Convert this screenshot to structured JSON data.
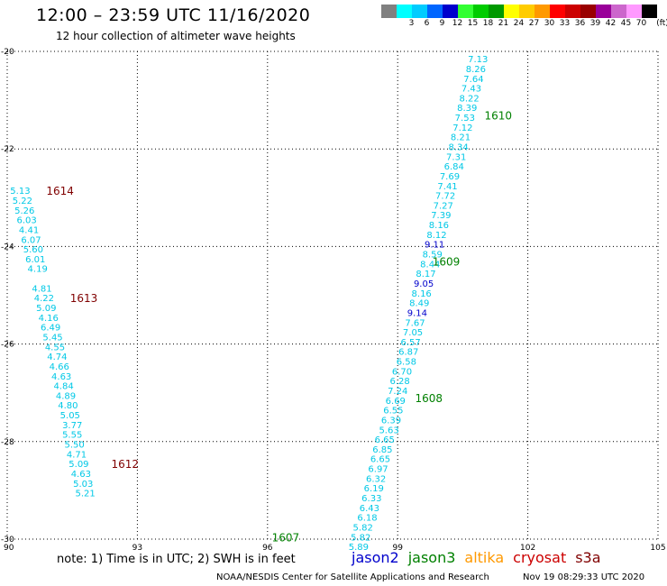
{
  "header": {
    "title": "12:00 – 23:59 UTC 11/16/2020",
    "subtitle": "12 hour collection of altimeter wave heights"
  },
  "legend": {
    "unit": "(ft)",
    "swatches": [
      {
        "label": "",
        "color": "#808080"
      },
      {
        "label": "3",
        "color": "#00ffff"
      },
      {
        "label": "6",
        "color": "#00ccff"
      },
      {
        "label": "9",
        "color": "#0066ff"
      },
      {
        "label": "12",
        "color": "#0000cc"
      },
      {
        "label": "15",
        "color": "#33ff33"
      },
      {
        "label": "18",
        "color": "#00cc00"
      },
      {
        "label": "21",
        "color": "#009900"
      },
      {
        "label": "24",
        "color": "#ffff00"
      },
      {
        "label": "27",
        "color": "#ffcc00"
      },
      {
        "label": "30",
        "color": "#ff9900"
      },
      {
        "label": "33",
        "color": "#ff0000"
      },
      {
        "label": "36",
        "color": "#cc0000"
      },
      {
        "label": "39",
        "color": "#990000"
      },
      {
        "label": "42",
        "color": "#990099"
      },
      {
        "label": "45",
        "color": "#cc66cc"
      },
      {
        "label": "70",
        "color": "#ff99ff"
      },
      {
        "label": "",
        "color": "#000000"
      }
    ]
  },
  "footer": {
    "note": "note: 1) Time is in UTC; 2) SWH is in feet",
    "satellites": [
      {
        "name": "jason2",
        "color": "#0000cc"
      },
      {
        "name": "jason3",
        "color": "#008000"
      },
      {
        "name": "altika",
        "color": "#ff9900"
      },
      {
        "name": "cryosat",
        "color": "#cc0000"
      },
      {
        "name": "s3a",
        "color": "#800000"
      }
    ],
    "credit": "NOAA/NESDIS Center for Satellite Applications and Research",
    "timestamp": "Nov 19 08:29:33 UTC 2020"
  },
  "chart_data": {
    "type": "scatter",
    "xlim": [
      90,
      105
    ],
    "ylim": [
      -30,
      -20
    ],
    "x_ticks": [
      "90",
      "93",
      "96",
      "99",
      "102",
      "105"
    ],
    "y_ticks": [
      "-20",
      "-22",
      "-24",
      "-26",
      "-28",
      "-30"
    ],
    "grid": true,
    "colors": {
      "cyan": "#00c8e6",
      "blue": "#0000cc",
      "green": "#008000",
      "maroon": "#800000"
    },
    "track_labels": [
      {
        "text": "1610",
        "x": 101.0,
        "y": -21.3,
        "color": "green"
      },
      {
        "text": "1609",
        "x": 99.8,
        "y": -24.3,
        "color": "green"
      },
      {
        "text": "1608",
        "x": 99.4,
        "y": -27.1,
        "color": "green"
      },
      {
        "text": "1607",
        "x": 96.1,
        "y": -29.95,
        "color": "green"
      },
      {
        "text": "1614",
        "x": 90.9,
        "y": -22.85,
        "color": "maroon"
      },
      {
        "text": "1613",
        "x": 91.45,
        "y": -25.05,
        "color": "maroon"
      },
      {
        "text": "1612",
        "x": 92.4,
        "y": -28.45,
        "color": "maroon"
      }
    ],
    "points": [
      {
        "x": 100.85,
        "y": -20.15,
        "v": "7.13",
        "c": "cyan"
      },
      {
        "x": 100.8,
        "y": -20.35,
        "v": "8.26",
        "c": "cyan"
      },
      {
        "x": 100.75,
        "y": -20.55,
        "v": "7.64",
        "c": "cyan"
      },
      {
        "x": 100.7,
        "y": -20.75,
        "v": "7.43",
        "c": "cyan"
      },
      {
        "x": 100.65,
        "y": -20.95,
        "v": "8.22",
        "c": "cyan"
      },
      {
        "x": 100.6,
        "y": -21.15,
        "v": "8.39",
        "c": "cyan"
      },
      {
        "x": 100.55,
        "y": -21.35,
        "v": "7.53",
        "c": "cyan"
      },
      {
        "x": 100.5,
        "y": -21.55,
        "v": "7.12",
        "c": "cyan"
      },
      {
        "x": 100.45,
        "y": -21.75,
        "v": "8.21",
        "c": "cyan"
      },
      {
        "x": 100.4,
        "y": -21.95,
        "v": "8.34",
        "c": "cyan"
      },
      {
        "x": 100.35,
        "y": -22.15,
        "v": "7.31",
        "c": "cyan"
      },
      {
        "x": 100.3,
        "y": -22.35,
        "v": "6.84",
        "c": "cyan"
      },
      {
        "x": 100.2,
        "y": -22.55,
        "v": "7.69",
        "c": "cyan"
      },
      {
        "x": 100.15,
        "y": -22.75,
        "v": "7.41",
        "c": "cyan"
      },
      {
        "x": 100.1,
        "y": -22.95,
        "v": "7.72",
        "c": "cyan"
      },
      {
        "x": 100.05,
        "y": -23.15,
        "v": "7.27",
        "c": "cyan"
      },
      {
        "x": 100.0,
        "y": -23.35,
        "v": "7.39",
        "c": "cyan"
      },
      {
        "x": 99.95,
        "y": -23.55,
        "v": "8.16",
        "c": "cyan"
      },
      {
        "x": 99.9,
        "y": -23.75,
        "v": "8.12",
        "c": "cyan"
      },
      {
        "x": 99.85,
        "y": -23.95,
        "v": "9.11",
        "c": "blue"
      },
      {
        "x": 99.8,
        "y": -24.15,
        "v": "8.59",
        "c": "cyan"
      },
      {
        "x": 99.75,
        "y": -24.35,
        "v": "8.44",
        "c": "cyan"
      },
      {
        "x": 99.65,
        "y": -24.55,
        "v": "8.17",
        "c": "cyan"
      },
      {
        "x": 99.6,
        "y": -24.75,
        "v": "9.05",
        "c": "blue"
      },
      {
        "x": 99.55,
        "y": -24.95,
        "v": "8.16",
        "c": "cyan"
      },
      {
        "x": 99.5,
        "y": -25.15,
        "v": "8.49",
        "c": "cyan"
      },
      {
        "x": 99.45,
        "y": -25.35,
        "v": "9.14",
        "c": "blue"
      },
      {
        "x": 99.4,
        "y": -25.55,
        "v": "7.67",
        "c": "cyan"
      },
      {
        "x": 99.35,
        "y": -25.75,
        "v": "7.05",
        "c": "cyan"
      },
      {
        "x": 99.3,
        "y": -25.95,
        "v": "6.57",
        "c": "cyan"
      },
      {
        "x": 99.25,
        "y": -26.15,
        "v": "6.87",
        "c": "cyan"
      },
      {
        "x": 99.2,
        "y": -26.35,
        "v": "6.58",
        "c": "cyan"
      },
      {
        "x": 99.1,
        "y": -26.55,
        "v": "6.70",
        "c": "cyan"
      },
      {
        "x": 99.05,
        "y": -26.75,
        "v": "6.28",
        "c": "cyan"
      },
      {
        "x": 99.0,
        "y": -26.95,
        "v": "7.24",
        "c": "cyan"
      },
      {
        "x": 98.95,
        "y": -27.15,
        "v": "6.69",
        "c": "cyan"
      },
      {
        "x": 98.9,
        "y": -27.35,
        "v": "6.55",
        "c": "cyan"
      },
      {
        "x": 98.85,
        "y": -27.55,
        "v": "6.39",
        "c": "cyan"
      },
      {
        "x": 98.8,
        "y": -27.75,
        "v": "5.63",
        "c": "cyan"
      },
      {
        "x": 98.7,
        "y": -27.95,
        "v": "6.65",
        "c": "cyan"
      },
      {
        "x": 98.65,
        "y": -28.15,
        "v": "6.85",
        "c": "cyan"
      },
      {
        "x": 98.6,
        "y": -28.35,
        "v": "6.65",
        "c": "cyan"
      },
      {
        "x": 98.55,
        "y": -28.55,
        "v": "6.97",
        "c": "cyan"
      },
      {
        "x": 98.5,
        "y": -28.75,
        "v": "6.32",
        "c": "cyan"
      },
      {
        "x": 98.45,
        "y": -28.95,
        "v": "6.19",
        "c": "cyan"
      },
      {
        "x": 98.4,
        "y": -29.15,
        "v": "6.33",
        "c": "cyan"
      },
      {
        "x": 98.35,
        "y": -29.35,
        "v": "6.43",
        "c": "cyan"
      },
      {
        "x": 98.3,
        "y": -29.55,
        "v": "6.18",
        "c": "cyan"
      },
      {
        "x": 98.2,
        "y": -29.75,
        "v": "5.82",
        "c": "cyan"
      },
      {
        "x": 98.15,
        "y": -29.95,
        "v": "5.82",
        "c": "cyan"
      },
      {
        "x": 98.1,
        "y": -30.15,
        "v": "5.89",
        "c": "cyan"
      },
      {
        "x": 90.3,
        "y": -22.85,
        "v": "5.13",
        "c": "cyan"
      },
      {
        "x": 90.35,
        "y": -23.05,
        "v": "5.22",
        "c": "cyan"
      },
      {
        "x": 90.4,
        "y": -23.25,
        "v": "5.26",
        "c": "cyan"
      },
      {
        "x": 90.45,
        "y": -23.45,
        "v": "6.03",
        "c": "cyan"
      },
      {
        "x": 90.5,
        "y": -23.65,
        "v": "4.41",
        "c": "cyan"
      },
      {
        "x": 90.55,
        "y": -23.85,
        "v": "6.07",
        "c": "cyan"
      },
      {
        "x": 90.6,
        "y": -24.05,
        "v": "5.60",
        "c": "cyan"
      },
      {
        "x": 90.65,
        "y": -24.25,
        "v": "6.01",
        "c": "cyan"
      },
      {
        "x": 90.7,
        "y": -24.45,
        "v": "4.19",
        "c": "cyan"
      },
      {
        "x": 90.8,
        "y": -24.85,
        "v": "4.81",
        "c": "cyan"
      },
      {
        "x": 90.85,
        "y": -25.05,
        "v": "4.22",
        "c": "cyan"
      },
      {
        "x": 90.9,
        "y": -25.25,
        "v": "5.09",
        "c": "cyan"
      },
      {
        "x": 90.95,
        "y": -25.45,
        "v": "4.16",
        "c": "cyan"
      },
      {
        "x": 91.0,
        "y": -25.65,
        "v": "6.49",
        "c": "cyan"
      },
      {
        "x": 91.05,
        "y": -25.85,
        "v": "5.45",
        "c": "cyan"
      },
      {
        "x": 91.1,
        "y": -26.05,
        "v": "4.55",
        "c": "cyan"
      },
      {
        "x": 91.15,
        "y": -26.25,
        "v": "4.74",
        "c": "cyan"
      },
      {
        "x": 91.2,
        "y": -26.45,
        "v": "4.66",
        "c": "cyan"
      },
      {
        "x": 91.25,
        "y": -26.65,
        "v": "4.63",
        "c": "cyan"
      },
      {
        "x": 91.3,
        "y": -26.85,
        "v": "4.84",
        "c": "cyan"
      },
      {
        "x": 91.35,
        "y": -27.05,
        "v": "4.89",
        "c": "cyan"
      },
      {
        "x": 91.4,
        "y": -27.25,
        "v": "4.80",
        "c": "cyan"
      },
      {
        "x": 91.45,
        "y": -27.45,
        "v": "5.05",
        "c": "cyan"
      },
      {
        "x": 91.5,
        "y": -27.65,
        "v": "3.77",
        "c": "cyan"
      },
      {
        "x": 91.5,
        "y": -27.85,
        "v": "5.55",
        "c": "cyan"
      },
      {
        "x": 91.55,
        "y": -28.05,
        "v": "5.50",
        "c": "cyan"
      },
      {
        "x": 91.6,
        "y": -28.25,
        "v": "4.71",
        "c": "cyan"
      },
      {
        "x": 91.65,
        "y": -28.45,
        "v": "5.09",
        "c": "cyan"
      },
      {
        "x": 91.7,
        "y": -28.65,
        "v": "4.63",
        "c": "cyan"
      },
      {
        "x": 91.75,
        "y": -28.85,
        "v": "5.03",
        "c": "cyan"
      },
      {
        "x": 91.8,
        "y": -29.05,
        "v": "5.21",
        "c": "cyan"
      }
    ]
  }
}
